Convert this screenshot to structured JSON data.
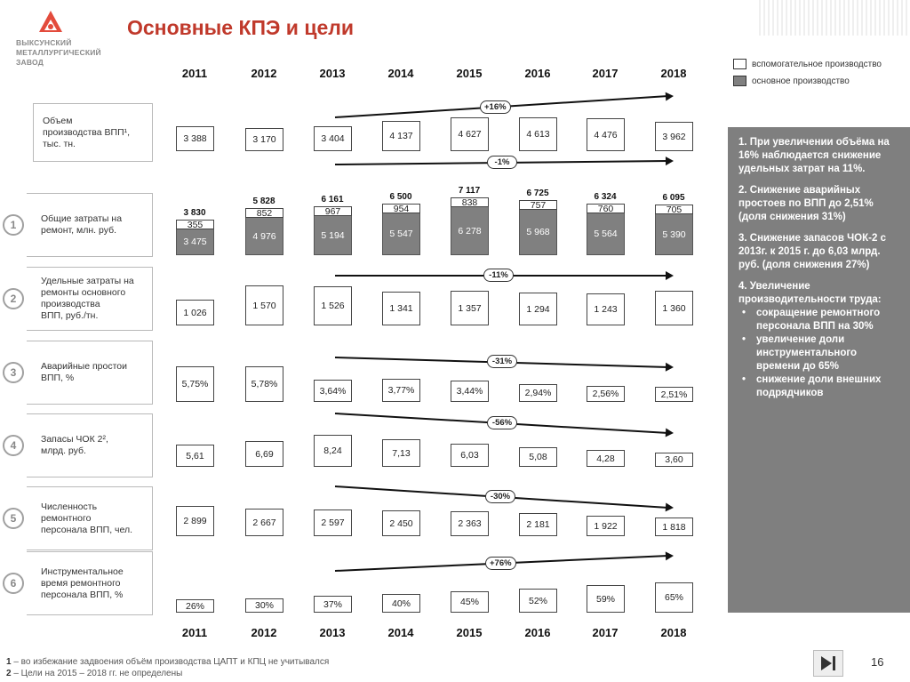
{
  "logo": {
    "lines": [
      "ВЫКСУНСКИЙ",
      "МЕТАЛЛУРГИЧЕСКИЙ",
      "ЗАВОД"
    ]
  },
  "title": "Основные КПЭ и цели",
  "years": [
    "2011",
    "2012",
    "2013",
    "2014",
    "2015",
    "2016",
    "2017",
    "2018"
  ],
  "legend": {
    "aux": "вспомогательное производство",
    "main": "основное производство",
    "colors": {
      "aux": "#ffffff",
      "main": "#808080"
    }
  },
  "rows": [
    {
      "label_lines": [
        "Объем",
        "производства ВПП¹,",
        "тыс. тн."
      ],
      "badge": "+16%",
      "values": [
        "3 388",
        "3 170",
        "3 404",
        "4 137",
        "4 627",
        "4 613",
        "4 476",
        "3 962"
      ]
    },
    {
      "number": "1",
      "label_lines": [
        "Общие затраты на",
        "ремонт, млн. руб."
      ],
      "badge": "-1%",
      "totals": [
        "3 830",
        "5 828",
        "6 161",
        "6 500",
        "7 117",
        "6 725",
        "6 324",
        "6 095"
      ],
      "aux": [
        "355",
        "852",
        "967",
        "954",
        "838",
        "757",
        "760",
        "705"
      ],
      "main": [
        "3 475",
        "4 976",
        "5 194",
        "5 547",
        "6 278",
        "5 968",
        "5 564",
        "5 390"
      ]
    },
    {
      "number": "2",
      "label_lines": [
        "Удельные затраты на",
        "ремонты основного",
        "производства",
        "ВПП, руб./тн."
      ],
      "badge": "-11%",
      "values": [
        "1 026",
        "1 570",
        "1 526",
        "1 341",
        "1 357",
        "1 294",
        "1 243",
        "1 360"
      ]
    },
    {
      "number": "3",
      "label_lines": [
        "Аварийные простои",
        "ВПП, %"
      ],
      "badge": "-31%",
      "values": [
        "5,75%",
        "5,78%",
        "3,64%",
        "3,77%",
        "3,44%",
        "2,94%",
        "2,56%",
        "2,51%"
      ]
    },
    {
      "number": "4",
      "label_lines": [
        "Запасы ЧОК 2², ",
        "млрд. руб."
      ],
      "badge": "-56%",
      "values": [
        "5,61",
        "6,69",
        "8,24",
        "7,13",
        "6,03",
        "5,08",
        "4,28",
        "3,60"
      ]
    },
    {
      "number": "5",
      "label_lines": [
        "Численность",
        "ремонтного",
        "персонала ВПП, чел."
      ],
      "badge": "-30%",
      "values": [
        "2 899",
        "2 667",
        "2 597",
        "2 450",
        "2 363",
        "2 181",
        "1 922",
        "1 818"
      ]
    },
    {
      "number": "6",
      "label_lines": [
        "Инструментальное",
        "время ремонтного",
        "персонала ВПП, %"
      ],
      "badge": "+76%",
      "values": [
        "26%",
        "30%",
        "37%",
        "40%",
        "45%",
        "52%",
        "59%",
        "65%"
      ]
    }
  ],
  "panel": {
    "p1": "1. При увеличении объёма на 16% наблюдается снижение удельных затрат на 11%.",
    "p2": "2. Снижение аварийных простоев по ВПП до 2,51% (доля снижения 31%)",
    "p3": "3. Снижение запасов ЧОК-2 с 2013г. к 2015 г. до 6,03 млрд. руб. (доля снижения 27%)",
    "p4": "4. Увеличение производительности труда:",
    "bullets": [
      "сокращение ремонтного персонала ВПП на 30%",
      "увеличение доли инструментального времени до 65%",
      "снижение доли внешних подрядчиков"
    ]
  },
  "footnotes": [
    {
      "num": "1",
      "text": " – во избежание задвоения объём производства ЦАПТ и КПЦ не учитывался"
    },
    {
      "num": "2",
      "text": " – Цели на 2015 – 2018 гг. не определены"
    }
  ],
  "page_number": "16"
}
